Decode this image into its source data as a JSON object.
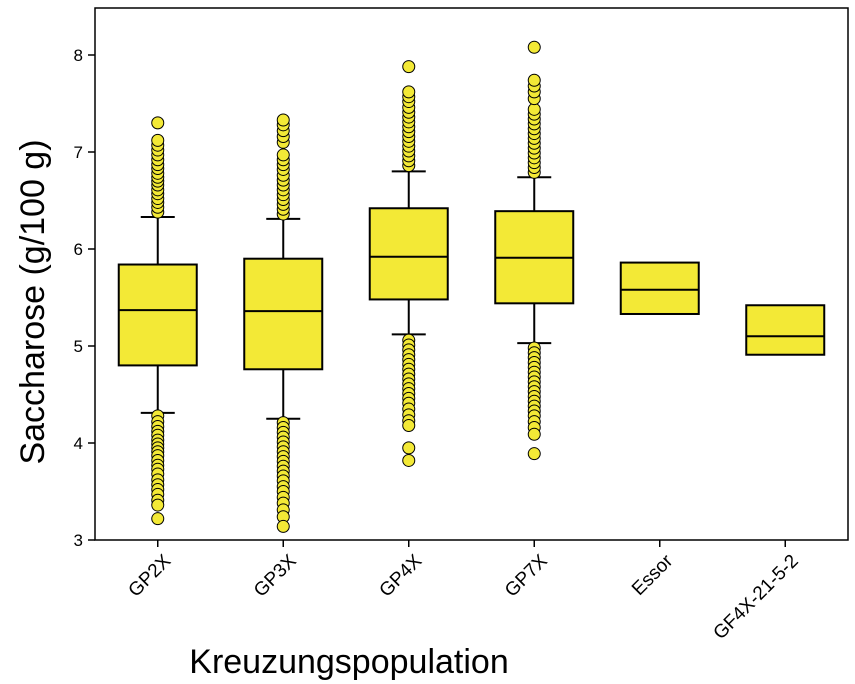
{
  "chart_data": {
    "type": "box",
    "title": "",
    "xlabel": "Kreuzungspopulation",
    "ylabel": "Saccharose (g/100 g)",
    "ylim": [
      3,
      8.5
    ],
    "yticks": [
      "3",
      "4",
      "5",
      "6",
      "7",
      "8"
    ],
    "grid": false,
    "colors": {
      "box_fill": "#f3e936",
      "stroke": "#000000",
      "outlier_fill": "#f3e936"
    },
    "categories": [
      "GP2X",
      "GP3X",
      "GP4X",
      "GP7X",
      "Essor",
      "GF4X-21-5-2"
    ],
    "boxes": [
      {
        "name": "GP2X",
        "whisker_low": 4.31,
        "q1": 4.8,
        "median": 5.37,
        "q3": 5.84,
        "whisker_high": 6.33,
        "outliers_low": [
          4.28,
          4.22,
          4.17,
          4.12,
          4.08,
          4.03,
          3.99,
          3.95,
          3.91,
          3.87,
          3.82,
          3.77,
          3.73,
          3.68,
          3.62,
          3.57,
          3.52,
          3.47,
          3.41,
          3.36,
          3.22
        ],
        "outliers_high": [
          6.38,
          6.43,
          6.48,
          6.52,
          6.57,
          6.61,
          6.66,
          6.7,
          6.74,
          6.78,
          6.83,
          6.87,
          6.92,
          6.97,
          7.02,
          7.07,
          7.12,
          7.3
        ]
      },
      {
        "name": "GP3X",
        "whisker_low": 4.25,
        "q1": 4.76,
        "median": 5.36,
        "q3": 5.9,
        "whisker_high": 6.31,
        "outliers_low": [
          4.21,
          4.16,
          4.11,
          4.06,
          4.01,
          3.96,
          3.91,
          3.86,
          3.81,
          3.76,
          3.71,
          3.66,
          3.61,
          3.55,
          3.5,
          3.44,
          3.38,
          3.31,
          3.24,
          3.14
        ],
        "outliers_high": [
          6.36,
          6.41,
          6.46,
          6.51,
          6.56,
          6.61,
          6.66,
          6.71,
          6.76,
          6.82,
          6.87,
          6.92,
          6.97,
          7.1,
          7.16,
          7.22,
          7.28,
          7.33
        ]
      },
      {
        "name": "GP4X",
        "whisker_low": 5.12,
        "q1": 5.48,
        "median": 5.92,
        "q3": 6.42,
        "whisker_high": 6.8,
        "outliers_low": [
          5.06,
          5.01,
          4.96,
          4.91,
          4.86,
          4.81,
          4.76,
          4.71,
          4.66,
          4.61,
          4.56,
          4.51,
          4.46,
          4.41,
          4.35,
          4.29,
          4.23,
          4.18,
          3.95,
          3.82
        ],
        "outliers_high": [
          6.86,
          6.91,
          6.96,
          7.01,
          7.06,
          7.11,
          7.16,
          7.21,
          7.26,
          7.31,
          7.36,
          7.41,
          7.46,
          7.52,
          7.57,
          7.62,
          7.88
        ]
      },
      {
        "name": "GP7X",
        "whisker_low": 5.03,
        "q1": 5.44,
        "median": 5.91,
        "q3": 6.39,
        "whisker_high": 6.74,
        "outliers_low": [
          4.98,
          4.93,
          4.88,
          4.83,
          4.78,
          4.73,
          4.68,
          4.63,
          4.58,
          4.53,
          4.48,
          4.43,
          4.38,
          4.33,
          4.28,
          4.22,
          4.16,
          4.09,
          3.89
        ],
        "outliers_high": [
          6.79,
          6.84,
          6.89,
          6.94,
          6.99,
          7.04,
          7.09,
          7.14,
          7.19,
          7.24,
          7.29,
          7.34,
          7.39,
          7.44,
          7.55,
          7.62,
          7.68,
          7.74,
          8.08
        ]
      },
      {
        "name": "Essor",
        "q1": 5.33,
        "median": 5.58,
        "q3": 5.86
      },
      {
        "name": "GF4X-21-5-2",
        "q1": 4.91,
        "median": 5.1,
        "q3": 5.42
      }
    ]
  }
}
